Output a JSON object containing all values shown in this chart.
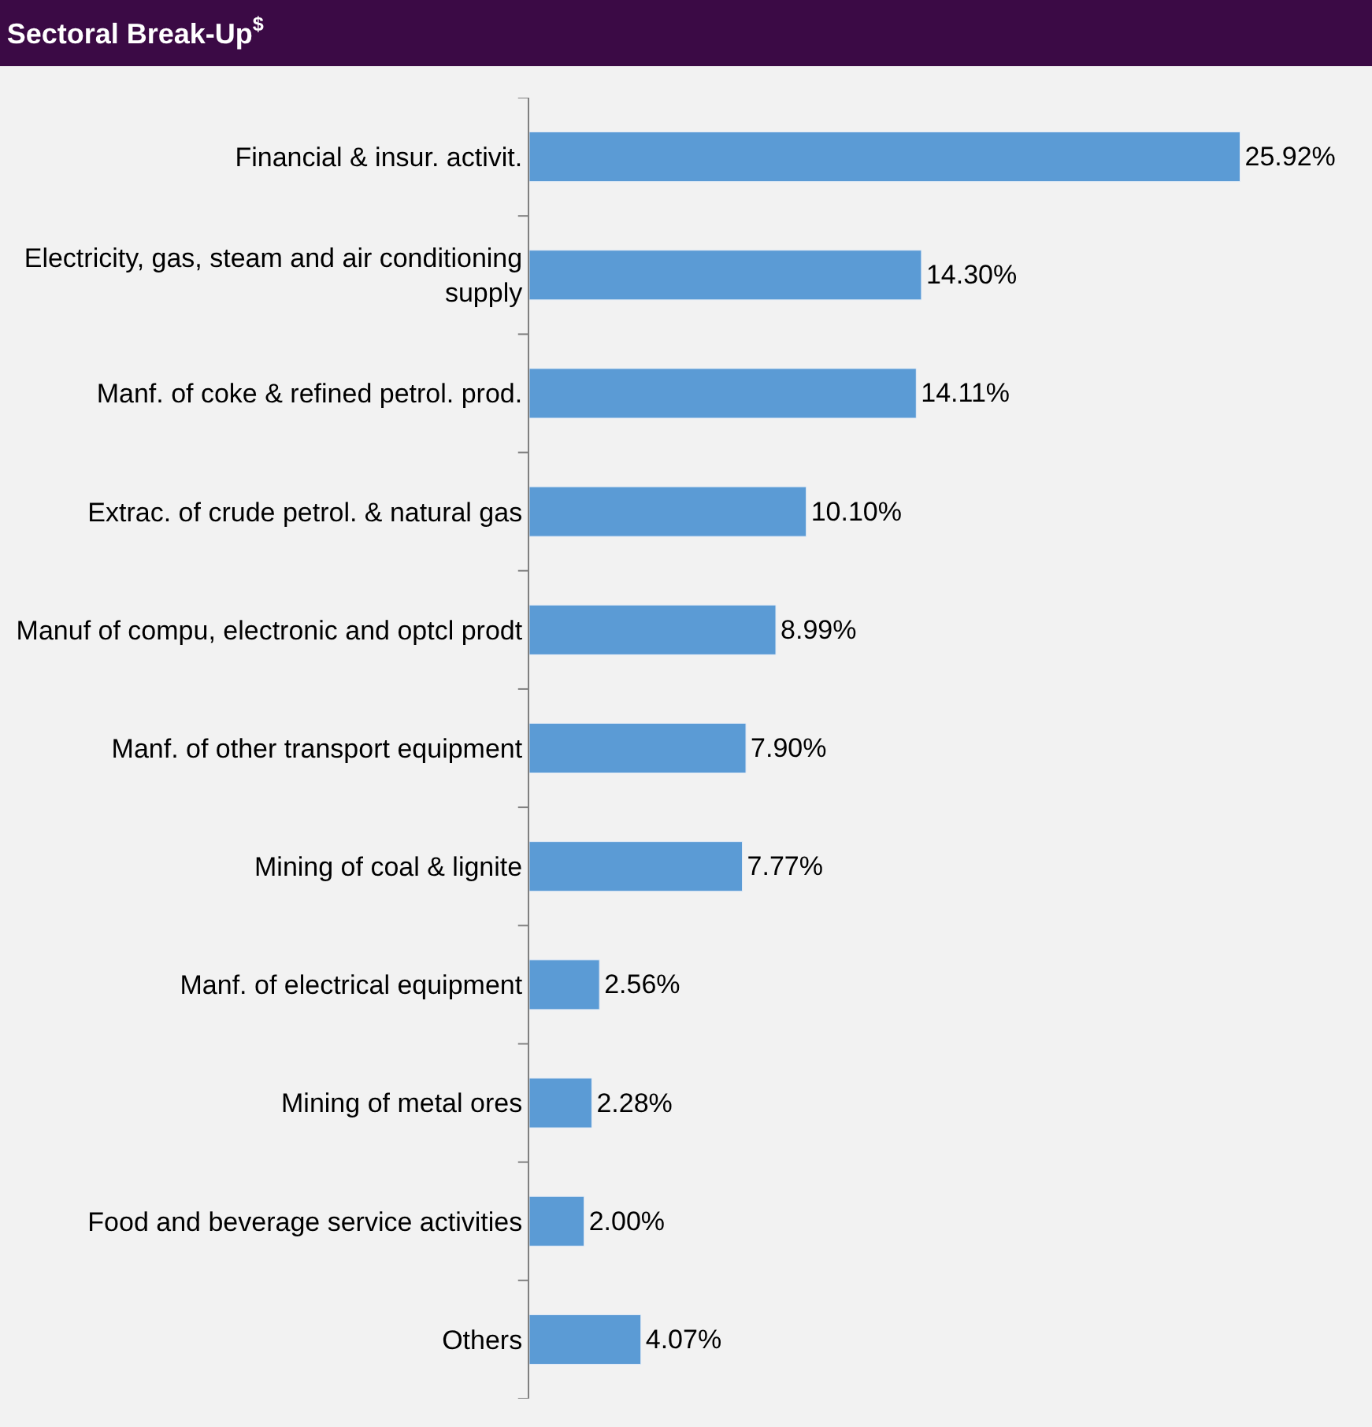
{
  "chart_data": {
    "type": "bar",
    "orientation": "horizontal",
    "title": "Sectoral Break-Up$^{$}$",
    "categories": [
      "Financial & insur. activit.",
      "Electricity, gas, steam and air conditioning supply",
      "Manf. of coke & refined petrol. prod.",
      "Extrac. of crude petrol. & natural gas",
      "Manuf of compu, electronic and optcl prodt",
      "Manf. of other transport equipment",
      "Mining of coal & lignite",
      "Manf. of electrical equipment",
      "Mining of metal ores",
      "Food and beverage service activities",
      "Others"
    ],
    "values": [
      25.92,
      14.3,
      14.11,
      10.1,
      8.99,
      7.9,
      7.77,
      2.56,
      2.28,
      2.0,
      4.07
    ],
    "value_labels": [
      "25.92%",
      "14.30%",
      "14.11%",
      "10.10%",
      "8.99%",
      "7.90%",
      "7.77%",
      "2.56%",
      "2.28%",
      "2.00%",
      "4.07%"
    ],
    "color": "#5b9bd5"
  }
}
